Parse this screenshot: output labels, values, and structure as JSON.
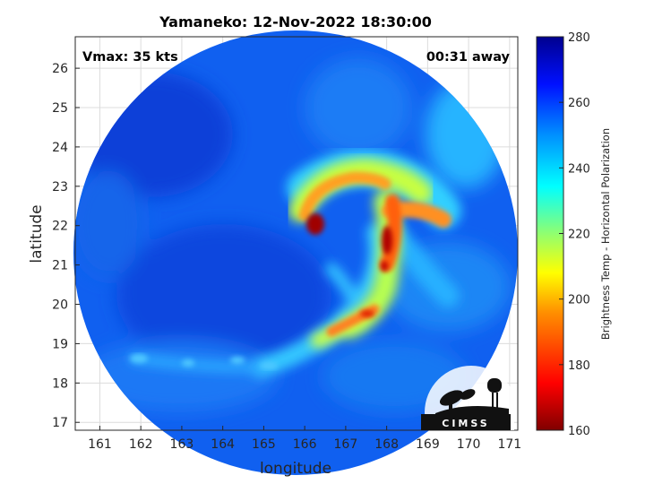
{
  "title": "Yamaneko: 12-Nov-2022 18:30:00",
  "vmax_label": "Vmax: 35 kts",
  "time_away_label": "00:31 away",
  "xlabel": "longitude",
  "ylabel": "latitude",
  "xticks": [
    "161",
    "162",
    "163",
    "164",
    "165",
    "166",
    "167",
    "168",
    "169",
    "170",
    "171"
  ],
  "yticks": [
    "17",
    "18",
    "19",
    "20",
    "21",
    "22",
    "23",
    "24",
    "25",
    "26"
  ],
  "colorbar": {
    "label": "Brightness Temp - Horizontal Polarization",
    "ticks": [
      "160",
      "180",
      "200",
      "220",
      "240",
      "260",
      "280"
    ],
    "range": [
      160,
      280
    ],
    "colormap": [
      "#800000",
      "#ff0000",
      "#ff8000",
      "#ffff00",
      "#80ff80",
      "#00ffff",
      "#0080ff",
      "#0000ff",
      "#00008f"
    ]
  },
  "logo": {
    "text": "CIMSS"
  },
  "map": {
    "xlim": [
      160.4,
      171.2
    ],
    "ylim": [
      16.8,
      26.8
    ],
    "swath_center": [
      165.3,
      21.7
    ],
    "swath_radius_deg": 5.4,
    "background_temp": 262,
    "features": [
      {
        "type": "eye_wall",
        "lon": 166.2,
        "lat": 21.95,
        "temp": 168
      },
      {
        "type": "rainband",
        "lon": 167.9,
        "lat": 21.5,
        "temp": 170
      },
      {
        "type": "rainband",
        "lon": 168.2,
        "lat": 22.2,
        "temp": 188
      },
      {
        "type": "rainband",
        "lon": 167.5,
        "lat": 19.9,
        "temp": 190
      },
      {
        "type": "cloud_shield",
        "lon": 167.3,
        "lat": 22.9,
        "temp": 205
      }
    ]
  }
}
